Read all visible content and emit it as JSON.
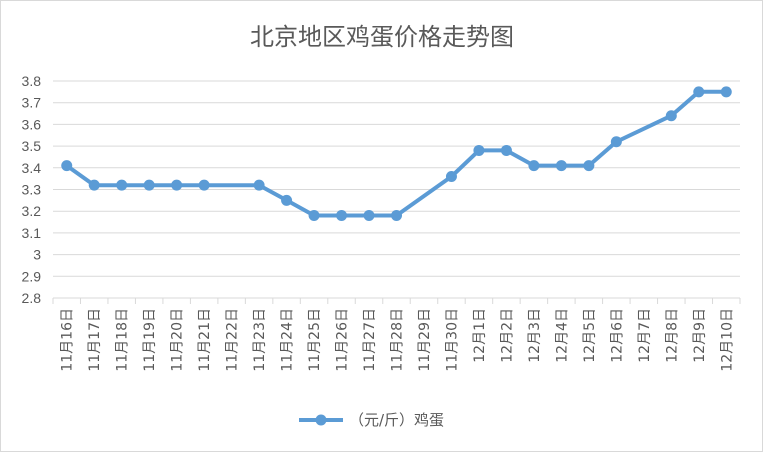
{
  "chart_data": {
    "type": "line",
    "title": "北京地区鸡蛋价格走势图",
    "categories": [
      "11月16日",
      "11月17日",
      "11月18日",
      "11月19日",
      "11月20日",
      "11月21日",
      "11月22日",
      "11月23日",
      "11月24日",
      "11月25日",
      "11月26日",
      "11月27日",
      "11月28日",
      "11月29日",
      "11月30日",
      "12月1日",
      "12月2日",
      "12月3日",
      "12月4日",
      "12月5日",
      "12月6日",
      "12月7日",
      "12月8日",
      "12月9日",
      "12月10日"
    ],
    "series": [
      {
        "name": "（元/斤）鸡蛋",
        "color": "#5b9bd5",
        "values": [
          3.41,
          3.32,
          3.32,
          3.32,
          3.32,
          3.32,
          null,
          3.32,
          3.25,
          3.18,
          3.18,
          3.18,
          3.18,
          null,
          3.36,
          3.48,
          3.48,
          3.41,
          3.41,
          3.41,
          3.52,
          null,
          3.64,
          3.75,
          3.75
        ]
      }
    ],
    "ylim": [
      2.8,
      3.8
    ],
    "yticks": [
      "3.8",
      "3.7",
      "3.6",
      "3.5",
      "3.4",
      "3.3",
      "3.2",
      "3.1",
      "3",
      "2.9",
      "2.8"
    ],
    "grid": true,
    "legend": "bottom",
    "xlabel": "",
    "ylabel": ""
  }
}
